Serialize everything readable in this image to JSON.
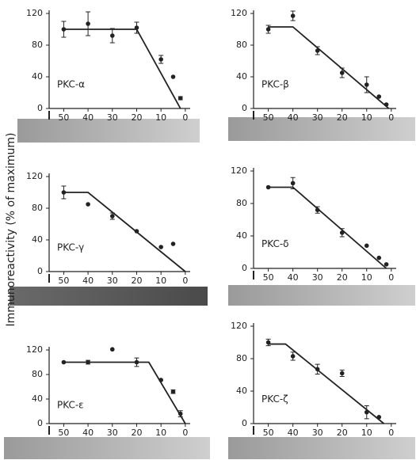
{
  "ylabel": "Immunoreactivity (% of maximum)",
  "chart_data": [
    {
      "type": "scatter",
      "title": "PKC-α",
      "x": [
        50,
        40,
        30,
        20,
        10,
        5,
        2
      ],
      "values": [
        100,
        107,
        92,
        102,
        62,
        40,
        13
      ],
      "errors": [
        10,
        15,
        9,
        7,
        5,
        null,
        2
      ],
      "fit": {
        "x": [
          50,
          20,
          2
        ],
        "y": [
          100,
          100,
          0
        ]
      },
      "xlim": [
        56,
        -2
      ],
      "ylim": [
        0,
        120
      ],
      "xticks": [
        50,
        40,
        30,
        20,
        10,
        0
      ],
      "yticks": [
        0,
        40,
        80,
        120
      ],
      "color": "#222"
    },
    {
      "type": "scatter",
      "title": "PKC-β",
      "x": [
        50,
        40,
        30,
        20,
        10,
        5,
        2
      ],
      "values": [
        100,
        117,
        73,
        45,
        30,
        15,
        5
      ],
      "errors": [
        5,
        6,
        5,
        6,
        10,
        null,
        null
      ],
      "fit": {
        "x": [
          50,
          40,
          1
        ],
        "y": [
          103,
          103,
          0
        ]
      },
      "xlim": [
        56,
        -2
      ],
      "ylim": [
        0,
        120
      ],
      "xticks": [
        50,
        40,
        30,
        20,
        10,
        0
      ],
      "yticks": [
        0,
        40,
        80,
        120
      ],
      "color": "#222"
    },
    {
      "type": "scatter",
      "title": "PKC-γ",
      "x": [
        50,
        40,
        30,
        20,
        10,
        5
      ],
      "values": [
        100,
        85,
        70,
        51,
        31,
        35
      ],
      "errors": [
        8,
        null,
        4,
        null,
        null,
        null
      ],
      "fit": {
        "x": [
          50,
          40,
          0
        ],
        "y": [
          100,
          100,
          0
        ]
      },
      "xlim": [
        56,
        -2
      ],
      "ylim": [
        0,
        120
      ],
      "xticks": [
        50,
        40,
        30,
        20,
        10,
        0
      ],
      "yticks": [
        0,
        40,
        80,
        120
      ],
      "color": "#222"
    },
    {
      "type": "scatter",
      "title": "PKC-δ",
      "x": [
        50,
        40,
        30,
        20,
        10,
        5,
        2
      ],
      "values": [
        100,
        105,
        72,
        44,
        28,
        13,
        5
      ],
      "errors": [
        null,
        7,
        4,
        5,
        null,
        null,
        null
      ],
      "fit": {
        "x": [
          50,
          40,
          2
        ],
        "y": [
          100,
          100,
          0
        ]
      },
      "xlim": [
        56,
        -2
      ],
      "ylim": [
        0,
        120
      ],
      "xticks": [
        50,
        40,
        30,
        20,
        10,
        0
      ],
      "yticks": [
        0,
        40,
        80,
        120
      ],
      "color": "#222"
    },
    {
      "type": "scatter",
      "title": "PKC-ε",
      "x": [
        50,
        40,
        30,
        20,
        10,
        5,
        2
      ],
      "values": [
        100,
        100,
        121,
        100,
        71,
        52,
        16
      ],
      "errors": [
        null,
        3,
        null,
        7,
        null,
        3,
        5
      ],
      "fit": {
        "x": [
          50,
          15,
          0
        ],
        "y": [
          100,
          100,
          0
        ]
      },
      "xlim": [
        56,
        -2
      ],
      "ylim": [
        0,
        120
      ],
      "xticks": [
        50,
        40,
        30,
        20,
        10,
        0
      ],
      "yticks": [
        0,
        40,
        80,
        120
      ],
      "color": "#222"
    },
    {
      "type": "scatter",
      "title": "PKC-ζ",
      "x": [
        50,
        40,
        30,
        20,
        10,
        5
      ],
      "values": [
        100,
        83,
        67,
        62,
        14,
        8
      ],
      "errors": [
        4,
        5,
        6,
        4,
        8,
        null
      ],
      "fit": {
        "x": [
          50,
          43,
          3
        ],
        "y": [
          98,
          98,
          0
        ]
      },
      "xlim": [
        56,
        -2
      ],
      "ylim": [
        0,
        120
      ],
      "xticks": [
        50,
        40,
        30,
        20,
        10,
        0
      ],
      "yticks": [
        0,
        40,
        80,
        120
      ],
      "color": "#222"
    }
  ]
}
